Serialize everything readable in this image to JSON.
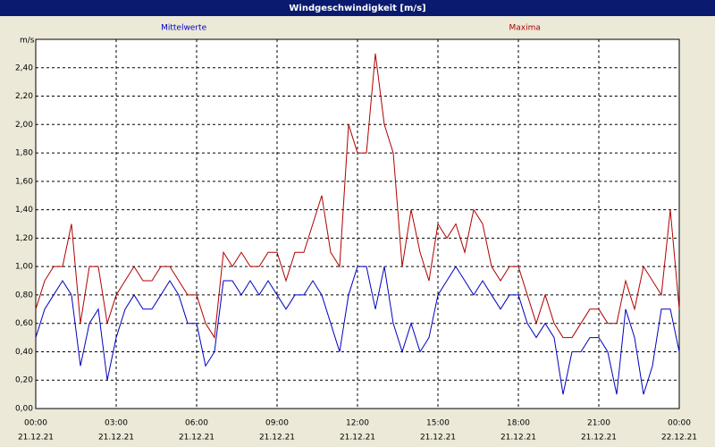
{
  "chart_data": {
    "type": "line",
    "title": "Windgeschwindigkeit [m/s]",
    "y_unit": "m/s",
    "x": [
      0,
      20,
      40,
      60,
      80,
      100,
      120,
      140,
      160,
      180,
      200,
      220,
      240,
      260,
      280,
      300,
      320,
      340,
      360,
      380,
      400,
      420,
      440,
      460,
      480,
      500,
      520,
      540,
      560,
      580,
      600,
      620,
      640,
      660,
      680,
      700,
      720,
      740,
      760,
      780,
      800,
      820,
      840,
      860,
      880,
      900,
      920,
      940,
      960,
      980,
      1000,
      1020,
      1040,
      1060,
      1080,
      1100,
      1120,
      1140,
      1160,
      1180,
      1200,
      1220,
      1240,
      1260,
      1280,
      1300,
      1320,
      1340,
      1360,
      1380,
      1400,
      1420,
      1440
    ],
    "series": [
      {
        "name": "Mittelwerte",
        "color": "#0000c0",
        "values": [
          0.5,
          0.7,
          0.8,
          0.9,
          0.8,
          0.3,
          0.6,
          0.7,
          0.2,
          0.5,
          0.7,
          0.8,
          0.7,
          0.7,
          0.8,
          0.9,
          0.8,
          0.6,
          0.6,
          0.3,
          0.4,
          0.9,
          0.9,
          0.8,
          0.9,
          0.8,
          0.9,
          0.8,
          0.7,
          0.8,
          0.8,
          0.9,
          0.8,
          0.6,
          0.4,
          0.8,
          1.0,
          1.0,
          0.7,
          1.0,
          0.6,
          0.4,
          0.6,
          0.4,
          0.5,
          0.8,
          0.9,
          1.0,
          0.9,
          0.8,
          0.9,
          0.8,
          0.7,
          0.8,
          0.8,
          0.6,
          0.5,
          0.6,
          0.5,
          0.1,
          0.4,
          0.4,
          0.5,
          0.5,
          0.4,
          0.1,
          0.7,
          0.5,
          0.1,
          0.3,
          0.7,
          0.7,
          0.4
        ]
      },
      {
        "name": "Maxima",
        "color": "#b00000",
        "values": [
          0.7,
          0.9,
          1.0,
          1.0,
          1.3,
          0.6,
          1.0,
          1.0,
          0.6,
          0.8,
          0.9,
          1.0,
          0.9,
          0.9,
          1.0,
          1.0,
          0.9,
          0.8,
          0.8,
          0.6,
          0.5,
          1.1,
          1.0,
          1.1,
          1.0,
          1.0,
          1.1,
          1.1,
          0.9,
          1.1,
          1.1,
          1.3,
          1.5,
          1.1,
          1.0,
          2.0,
          1.8,
          1.8,
          2.5,
          2.0,
          1.8,
          1.0,
          1.4,
          1.1,
          0.9,
          1.3,
          1.2,
          1.3,
          1.1,
          1.4,
          1.3,
          1.0,
          0.9,
          1.0,
          1.0,
          0.8,
          0.6,
          0.8,
          0.6,
          0.5,
          0.5,
          0.6,
          0.7,
          0.7,
          0.6,
          0.6,
          0.9,
          0.7,
          1.0,
          0.9,
          0.8,
          1.4,
          0.7
        ]
      }
    ],
    "xlim": [
      0,
      1440
    ],
    "xticks": [
      {
        "value": 0,
        "label": "00:00"
      },
      {
        "value": 180,
        "label": "03:00"
      },
      {
        "value": 360,
        "label": "06:00"
      },
      {
        "value": 540,
        "label": "09:00"
      },
      {
        "value": 720,
        "label": "12:00"
      },
      {
        "value": 900,
        "label": "15:00"
      },
      {
        "value": 1080,
        "label": "18:00"
      },
      {
        "value": 1260,
        "label": "21:00"
      },
      {
        "value": 1440,
        "label": "00:00"
      }
    ],
    "xtick_dates": [
      "21.12.21",
      "21.12.21",
      "21.12.21",
      "21.12.21",
      "21.12.21",
      "21.12.21",
      "21.12.21",
      "21.12.21",
      "22.12.21"
    ],
    "ylim": [
      0,
      2.6
    ],
    "yticks": [
      {
        "value": 0,
        "label": "0,00"
      },
      {
        "value": 0.2,
        "label": "0,20"
      },
      {
        "value": 0.4,
        "label": "0,40"
      },
      {
        "value": 0.6,
        "label": "0,60"
      },
      {
        "value": 0.8,
        "label": "0,80"
      },
      {
        "value": 1.0,
        "label": "1,00"
      },
      {
        "value": 1.2,
        "label": "1,20"
      },
      {
        "value": 1.4,
        "label": "1,40"
      },
      {
        "value": 1.6,
        "label": "1,60"
      },
      {
        "value": 1.8,
        "label": "1,80"
      },
      {
        "value": 2.0,
        "label": "2,00"
      },
      {
        "value": 2.2,
        "label": "2,20"
      },
      {
        "value": 2.4,
        "label": "2,40"
      }
    ],
    "grid": true
  }
}
